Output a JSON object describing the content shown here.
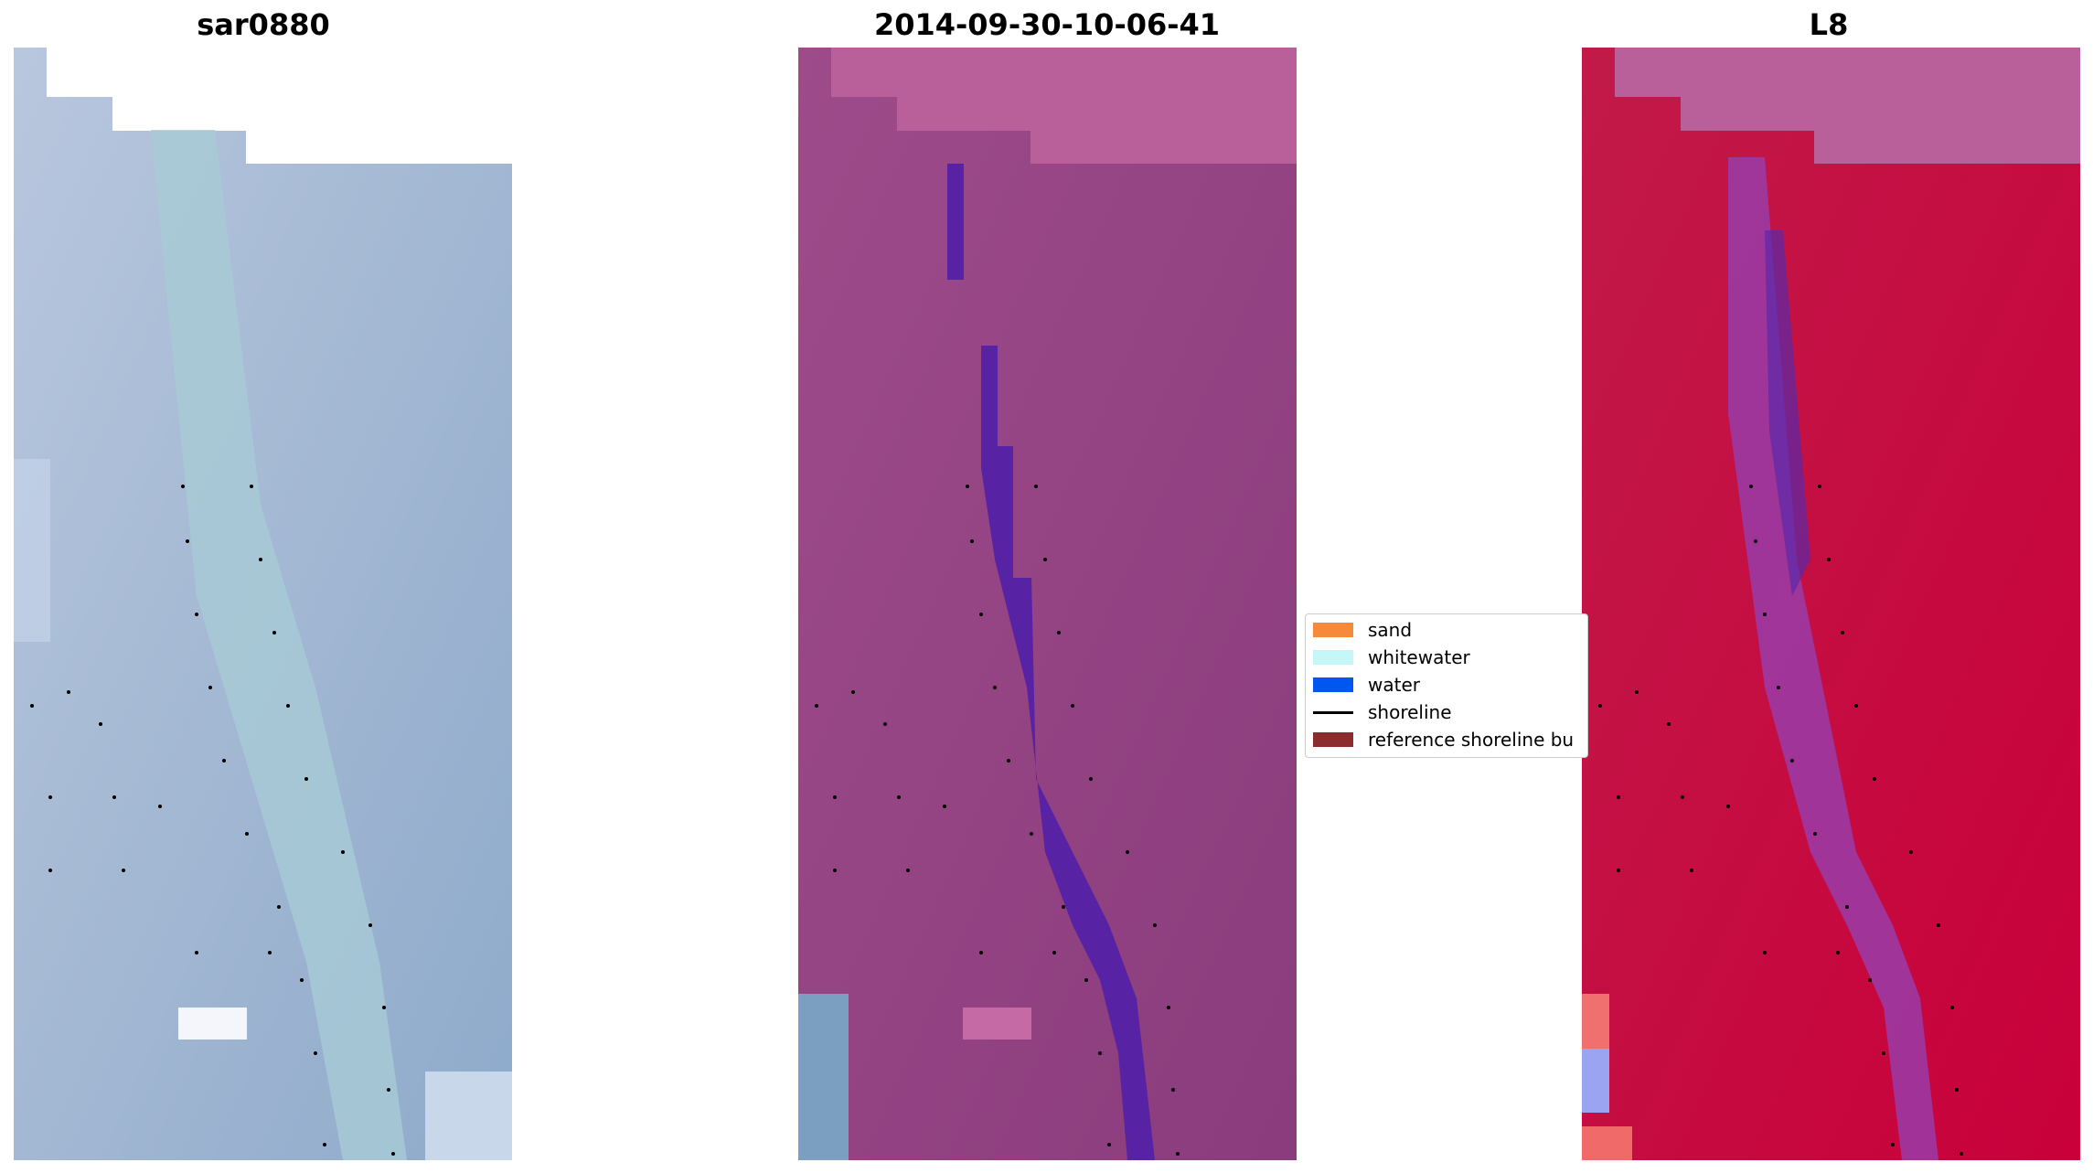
{
  "panels": [
    {
      "title": "sar0880",
      "style": "sar"
    },
    {
      "title": "2014-09-30-10-06-41",
      "style": "classified"
    },
    {
      "title": "L8",
      "style": "l8"
    }
  ],
  "legend": {
    "items": [
      {
        "label": "sand",
        "kind": "patch",
        "color": "#f58a3c"
      },
      {
        "label": "whitewater",
        "kind": "patch",
        "color": "#c6f7f7"
      },
      {
        "label": "water",
        "kind": "patch",
        "color": "#0057f0"
      },
      {
        "label": "shoreline",
        "kind": "line",
        "color": "#000000"
      },
      {
        "label": "reference shoreline bu",
        "kind": "patch",
        "color": "#8b2d2d"
      }
    ]
  }
}
